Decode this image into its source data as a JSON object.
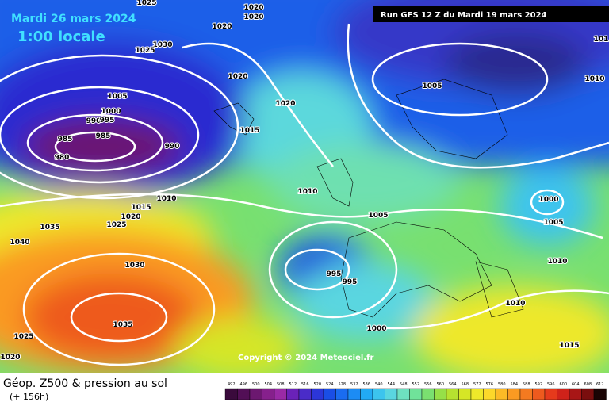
{
  "header": {
    "date": "Mardi 26 mars 2024",
    "time": "1:00 locale",
    "run": "Run GFS 12 Z du Mardi 19 mars 2024"
  },
  "footer": {
    "title": "Géop. Z500 & pression au sol",
    "lead": "(+ 156h)",
    "copyright": "Copyright © 2024 Meteociel.fr"
  },
  "legend": {
    "ticks": [
      492,
      496,
      500,
      504,
      508,
      512,
      516,
      520,
      524,
      528,
      532,
      536,
      540,
      544,
      548,
      552,
      556,
      560,
      564,
      568,
      572,
      576,
      580,
      584,
      588,
      592,
      596,
      600,
      604,
      608,
      612
    ],
    "colors": [
      "#3a0a3c",
      "#520f56",
      "#6c1870",
      "#86208c",
      "#9a2aa6",
      "#6a22b8",
      "#4a2cc8",
      "#2c36d8",
      "#1a4ee6",
      "#1a6cf0",
      "#1c8cf4",
      "#22aaf4",
      "#3cc4ee",
      "#5ad6e0",
      "#6ee0c0",
      "#70e29a",
      "#7ae070",
      "#96e048",
      "#b6e230",
      "#d6e626",
      "#eee82a",
      "#fcd82a",
      "#fcba26",
      "#fa9a22",
      "#f47a20",
      "#ee5a1e",
      "#e63a1c",
      "#d0221a",
      "#a81616",
      "#7a0e0e",
      "#1a0404"
    ]
  },
  "isobar_labels": [
    "1025",
    "1020",
    "1020",
    "1020",
    "1030",
    "1025",
    "1020",
    "1005",
    "1000",
    "990",
    "995",
    "985",
    "985",
    "980",
    "990",
    "1020",
    "1015",
    "1010",
    "1015",
    "1020",
    "1025",
    "1035",
    "1040",
    "1030",
    "1035",
    "1025",
    "1020",
    "1010",
    "1005",
    "995",
    "995",
    "1000",
    "1005",
    "1010",
    "1000",
    "1005",
    "1010",
    "1010",
    "1015",
    "101"
  ]
}
